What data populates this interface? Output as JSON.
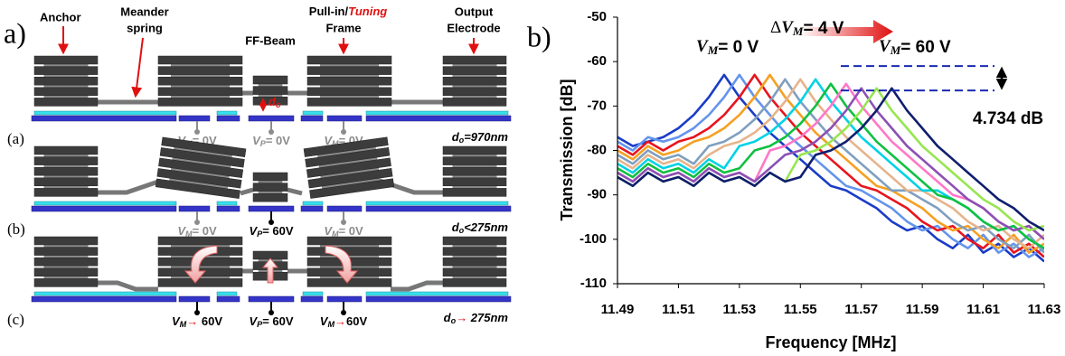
{
  "panel_a": {
    "label": "a)",
    "callouts": {
      "anchor": "Anchor",
      "meander": [
        "Meander",
        "spring"
      ],
      "beam": "FF-Beam",
      "frame": {
        "prefix": "Pull-in/",
        "emph": "Tuning",
        "line2": "Frame"
      },
      "output": [
        "Output",
        "Electrode"
      ],
      "gap": {
        "symbol": "d",
        "sub": "o"
      }
    },
    "rows": [
      {
        "label": "(a)",
        "voltages": [
          {
            "symbol": "V",
            "sub": "M",
            "rel": "=",
            "value": " 0V",
            "color": "#8c8c8c"
          },
          {
            "symbol": "V",
            "sub": "P",
            "rel": "=",
            "value": " 0V",
            "color": "#8c8c8c"
          },
          {
            "symbol": "V",
            "sub": "M",
            "rel": "=",
            "value": " 0V",
            "color": "#8c8c8c"
          }
        ],
        "gap": {
          "symbol": "d",
          "sub": "o",
          "rel": "=",
          "value": "970nm"
        }
      },
      {
        "label": "(b)",
        "voltages": [
          {
            "symbol": "V",
            "sub": "M",
            "rel": "=",
            "value": " 0V",
            "color": "#8c8c8c"
          },
          {
            "symbol": "V",
            "sub": "P",
            "rel": "=",
            "value": " 60V",
            "color": "#000000"
          },
          {
            "symbol": "V",
            "sub": "M",
            "rel": "=",
            "value": " 0V",
            "color": "#8c8c8c"
          }
        ],
        "gap": {
          "symbol": "d",
          "sub": "o",
          "rel": "<",
          "value": "275nm"
        }
      },
      {
        "label": "(c)",
        "voltages": [
          {
            "symbol": "V",
            "sub": "M",
            "rel": "→",
            "value": " 60V",
            "color": "#000000"
          },
          {
            "symbol": "V",
            "sub": "P",
            "rel": "=",
            "value": " 60V",
            "color": "#000000"
          },
          {
            "symbol": "V",
            "sub": "M",
            "rel": "→",
            "value": "60V",
            "color": "#000000"
          }
        ],
        "gap": {
          "symbol": "d",
          "sub": "o",
          "rel": "→",
          "value": " 275nm"
        }
      }
    ]
  },
  "chart_data": {
    "type": "line",
    "panel_label": "b)",
    "x_label": "Frequency [MHz]",
    "y_label": "Transmission [dB]",
    "xlim": [
      11.49,
      11.63
    ],
    "ylim": [
      -110,
      -50
    ],
    "xticks": [
      11.49,
      11.51,
      11.53,
      11.55,
      11.57,
      11.59,
      11.61,
      11.63
    ],
    "yticks": [
      -110,
      -100,
      -90,
      -80,
      -70,
      -60,
      -50
    ],
    "annotations": {
      "start": {
        "symbol": "V",
        "sub": "M",
        "text": "= 0 V"
      },
      "step": {
        "prefix": "Δ",
        "symbol": "V",
        "sub": "M",
        "text": "= 4 V"
      },
      "end": {
        "symbol": "V",
        "sub": "M",
        "text": "= 60 V"
      },
      "range": "4.734 dB"
    },
    "bracket_levels": [
      -61,
      -66.5
    ],
    "x": [
      11.49,
      11.495,
      11.5,
      11.505,
      11.51,
      11.515,
      11.52,
      11.525,
      11.53,
      11.535,
      11.54,
      11.545,
      11.55,
      11.555,
      11.56,
      11.565,
      11.57,
      11.575,
      11.58,
      11.585,
      11.59,
      11.595,
      11.6,
      11.605,
      11.61,
      11.615,
      11.62,
      11.625,
      11.63
    ],
    "series": [
      {
        "color": "#1a3cc8",
        "values": [
          -77,
          -79,
          -78,
          -77,
          -75,
          -72,
          -68,
          -63,
          -68,
          -72,
          -76,
          -79,
          -82,
          -85,
          -88,
          -89,
          -91,
          -93,
          -96,
          -98,
          -97,
          -100,
          -102,
          -99,
          -103,
          -101,
          -104,
          -102,
          -105
        ]
      },
      {
        "color": "#6495ed",
        "values": [
          -78,
          -80,
          -77,
          -78,
          -77,
          -75,
          -72,
          -68,
          -63,
          -68,
          -72,
          -76,
          -79,
          -82,
          -85,
          -88,
          -89,
          -91,
          -93,
          -96,
          -98,
          -97,
          -100,
          -102,
          -99,
          -103,
          -101,
          -104,
          -102
        ]
      },
      {
        "color": "#e8141e",
        "values": [
          -79,
          -81,
          -78,
          -80,
          -78,
          -77,
          -75,
          -72,
          -68,
          -63,
          -68,
          -72,
          -76,
          -79,
          -82,
          -85,
          -88,
          -89,
          -91,
          -93,
          -96,
          -98,
          -97,
          -100,
          -102,
          -99,
          -103,
          -101,
          -104
        ]
      },
      {
        "color": "#f5a020",
        "values": [
          -80,
          -82,
          -79,
          -81,
          -80,
          -78,
          -77,
          -75,
          -72,
          -68,
          -63,
          -68,
          -72,
          -76,
          -79,
          -82,
          -85,
          -88,
          -89,
          -91,
          -93,
          -96,
          -98,
          -97,
          -100,
          -102,
          -99,
          -103,
          -101
        ]
      },
      {
        "color": "#7f9fbf",
        "values": [
          -81,
          -83,
          -80,
          -82,
          -81,
          -83,
          -79,
          -78,
          -76,
          -73,
          -69,
          -64,
          -69,
          -73,
          -77,
          -80,
          -83,
          -86,
          -89,
          -89,
          -91,
          -93,
          -96,
          -98,
          -97,
          -100,
          -102,
          -99,
          -103
        ]
      },
      {
        "color": "#e6b48c",
        "values": [
          -82,
          -84,
          -81,
          -83,
          -82,
          -84,
          -81,
          -79,
          -78,
          -76,
          -73,
          -69,
          -64,
          -69,
          -73,
          -77,
          -80,
          -83,
          -86,
          -89,
          -89,
          -91,
          -93,
          -96,
          -98,
          -97,
          -100,
          -102,
          -99
        ]
      },
      {
        "color": "#00d2e6",
        "values": [
          -83,
          -85,
          -82,
          -84,
          -83,
          -85,
          -82,
          -84,
          -79,
          -78,
          -76,
          -73,
          -69,
          -64,
          -69,
          -73,
          -77,
          -80,
          -83,
          -86,
          -89,
          -89,
          -91,
          -93,
          -96,
          -98,
          -97,
          -100,
          -102
        ]
      },
      {
        "color": "#10c040",
        "values": [
          -84,
          -86,
          -83,
          -85,
          -84,
          -86,
          -83,
          -85,
          -84,
          -80,
          -79,
          -77,
          -74,
          -70,
          -65,
          -70,
          -74,
          -78,
          -81,
          -84,
          -87,
          -90,
          -91,
          -93,
          -96,
          -98,
          -97,
          -100,
          -102
        ]
      },
      {
        "color": "#ff78c8",
        "values": [
          -85,
          -87,
          -84,
          -86,
          -85,
          -87,
          -84,
          -86,
          -85,
          -87,
          -80,
          -79,
          -77,
          -74,
          -70,
          -65,
          -70,
          -74,
          -78,
          -81,
          -84,
          -87,
          -90,
          -91,
          -93,
          -96,
          -98,
          -97,
          -100
        ]
      },
      {
        "color": "#8c50b4",
        "values": [
          -85,
          -87,
          -84,
          -86,
          -85,
          -87,
          -84,
          -86,
          -85,
          -87,
          -84,
          -81,
          -80,
          -78,
          -75,
          -71,
          -66,
          -71,
          -75,
          -79,
          -82,
          -85,
          -88,
          -91,
          -93,
          -96,
          -98,
          -97,
          -100
        ]
      },
      {
        "color": "#96e650",
        "values": [
          -86,
          -88,
          -85,
          -87,
          -86,
          -88,
          -85,
          -87,
          -86,
          -88,
          -85,
          -87,
          -81,
          -80,
          -78,
          -75,
          -71,
          -66,
          -71,
          -75,
          -79,
          -82,
          -85,
          -88,
          -91,
          -93,
          -96,
          -98,
          -97
        ]
      },
      {
        "color": "#0f1e6e",
        "values": [
          -86,
          -88,
          -85,
          -87,
          -86,
          -88,
          -85,
          -87,
          -86,
          -88,
          -85,
          -87,
          -86,
          -81,
          -80,
          -78,
          -75,
          -71,
          -66,
          -71,
          -75,
          -79,
          -82,
          -85,
          -88,
          -91,
          -93,
          -96,
          -98
        ]
      }
    ]
  }
}
